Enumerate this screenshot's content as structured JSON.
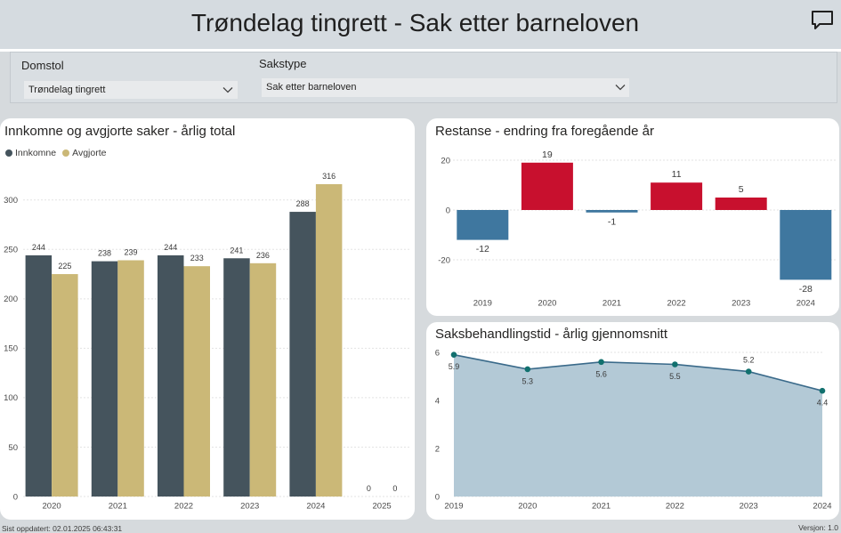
{
  "header": {
    "title": "Trøndelag tingrett - Sak etter barneloven",
    "comment_icon": "comment-icon"
  },
  "filters": {
    "domstol": {
      "label": "Domstol",
      "value": "Trøndelag tingrett",
      "icon": "chevron-down-icon"
    },
    "sakstype": {
      "label": "Sakstype",
      "value": "Sak etter barneloven",
      "icon": "chevron-down-icon"
    }
  },
  "footer": {
    "last_updated": "Sist oppdatert: 02.01.2025 06:43:31",
    "version": "Versjon: 1.0"
  },
  "colors": {
    "page_background": "#d6dadd",
    "card_background": "#ffffff",
    "title_text": "#252423"
  },
  "chart_data": [
    {
      "type": "bar",
      "title": "Innkomne og avgjorte saker - årlig total",
      "categories": [
        "2020",
        "2021",
        "2022",
        "2023",
        "2024",
        "2025"
      ],
      "series": [
        {
          "name": "Innkomne",
          "values": [
            244,
            238,
            244,
            241,
            288,
            0
          ],
          "color": "#45545d"
        },
        {
          "name": "Avgjorte",
          "values": [
            225,
            239,
            233,
            236,
            316,
            0
          ],
          "color": "#cbb877"
        }
      ],
      "yticks": [
        0,
        50,
        100,
        150,
        200,
        250,
        300
      ],
      "ylim": [
        0,
        330
      ],
      "grid": true,
      "legend": "top-left",
      "data_labels": true
    },
    {
      "type": "bar",
      "title": "Restanse - endring fra foregående år",
      "categories": [
        "2019",
        "2020",
        "2021",
        "2022",
        "2023",
        "2024"
      ],
      "values": [
        -12,
        19,
        -1,
        11,
        5,
        -28
      ],
      "positive_color": "#c8102e",
      "negative_color": "#3f779f",
      "yticks": [
        -20,
        0,
        20
      ],
      "ylim": [
        -30,
        25
      ],
      "grid": true,
      "data_labels": true
    },
    {
      "type": "area",
      "title": "Saksbehandlingstid - årlig gjennomsnitt",
      "x": [
        "2019",
        "2020",
        "2021",
        "2022",
        "2023",
        "2024"
      ],
      "values": [
        5.9,
        5.3,
        5.6,
        5.5,
        5.2,
        4.4
      ],
      "line_color": "#3a6a8a",
      "fill_color": "#b3c9d6",
      "marker_color": "#11706e",
      "yticks": [
        0,
        2,
        4,
        6
      ],
      "ylim": [
        0,
        6
      ],
      "grid": true,
      "data_labels": true
    }
  ]
}
